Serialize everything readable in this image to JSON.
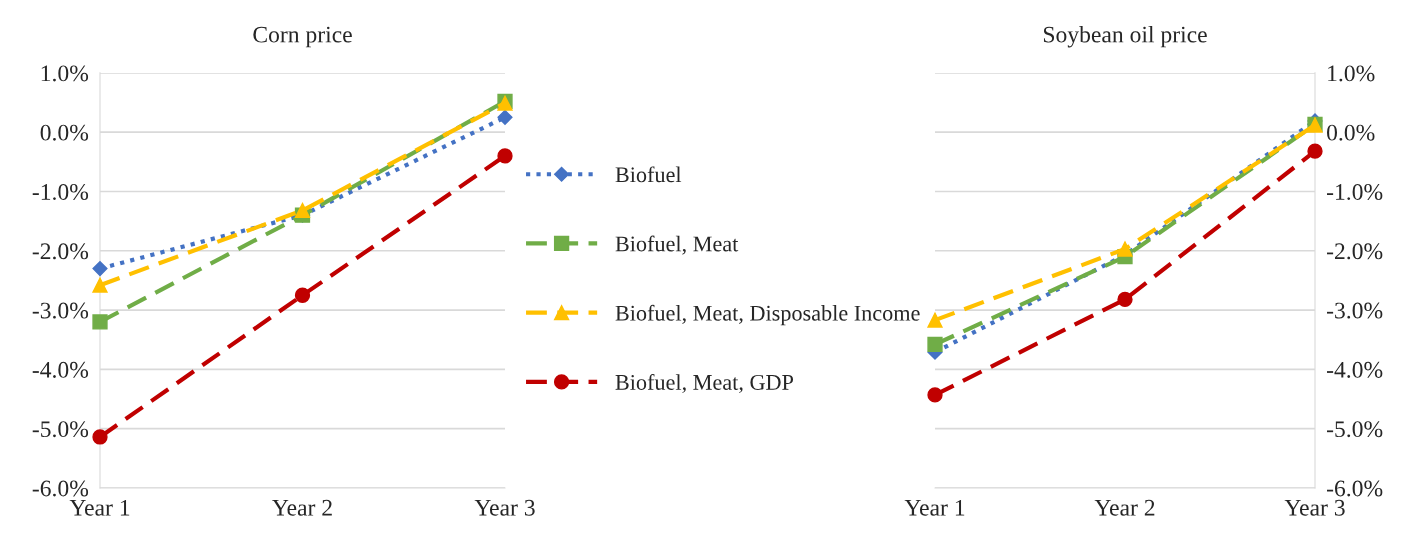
{
  "chart_data": [
    {
      "type": "line",
      "title": "Corn price",
      "categories": [
        "Year 1",
        "Year 2",
        "Year 3"
      ],
      "ylim": [
        -6,
        1
      ],
      "yticks": [
        {
          "value": -6,
          "label": "-6.0%"
        },
        {
          "value": -5,
          "label": "-5.0%"
        },
        {
          "value": -4,
          "label": "-4.0%"
        },
        {
          "value": -3,
          "label": "-3.0%"
        },
        {
          "value": -2,
          "label": "-2.0%"
        },
        {
          "value": -1,
          "label": "-1.0%"
        },
        {
          "value": 0,
          "label": "0.0%"
        },
        {
          "value": 1,
          "label": "1.0%"
        }
      ],
      "grid": "y",
      "legend": "right",
      "series": [
        {
          "name": "Biofuel",
          "color": "#4472c4",
          "marker": "diamond",
          "line_style": "dotted",
          "values": [
            -2.3,
            -1.4,
            0.25
          ]
        },
        {
          "name": "Biofuel, Meat",
          "color": "#70ad47",
          "marker": "square",
          "line_style": "dashed",
          "values": [
            -3.2,
            -1.4,
            0.52
          ]
        },
        {
          "name": "Biofuel, Meat, Disposable Income",
          "color": "#ffc000",
          "marker": "triangle",
          "line_style": "dashed",
          "values": [
            -2.58,
            -1.32,
            0.49
          ]
        },
        {
          "name": "Biofuel, Meat, GDP",
          "color": "#c00000",
          "marker": "circle",
          "line_style": "dashed",
          "values": [
            -5.14,
            -2.75,
            -0.4
          ]
        }
      ]
    },
    {
      "type": "line",
      "title": "Soybean oil price",
      "categories": [
        "Year 1",
        "Year 2",
        "Year 3"
      ],
      "ylim": [
        -6,
        1
      ],
      "yticks": [
        {
          "value": -6,
          "label": "-6.0%"
        },
        {
          "value": -5,
          "label": "-5.0%"
        },
        {
          "value": -4,
          "label": "-4.0%"
        },
        {
          "value": -3,
          "label": "-3.0%"
        },
        {
          "value": -2,
          "label": "-2.0%"
        },
        {
          "value": -1,
          "label": "-1.0%"
        },
        {
          "value": 0,
          "label": "0.0%"
        },
        {
          "value": 1,
          "label": "1.0%"
        }
      ],
      "grid": "y",
      "legend": false,
      "series": [
        {
          "color": "#4472c4",
          "marker": "diamond",
          "line_style": "dotted",
          "values": [
            -3.71,
            -2.07,
            0.19
          ]
        },
        {
          "color": "#70ad47",
          "marker": "square",
          "line_style": "dashed",
          "values": [
            -3.58,
            -2.1,
            0.13
          ]
        },
        {
          "color": "#ffc000",
          "marker": "triangle",
          "line_style": "dashed",
          "values": [
            -3.17,
            -1.97,
            0.12
          ]
        },
        {
          "color": "#c00000",
          "marker": "circle",
          "line_style": "dashed",
          "values": [
            -4.43,
            -2.82,
            -0.32
          ]
        }
      ]
    }
  ]
}
